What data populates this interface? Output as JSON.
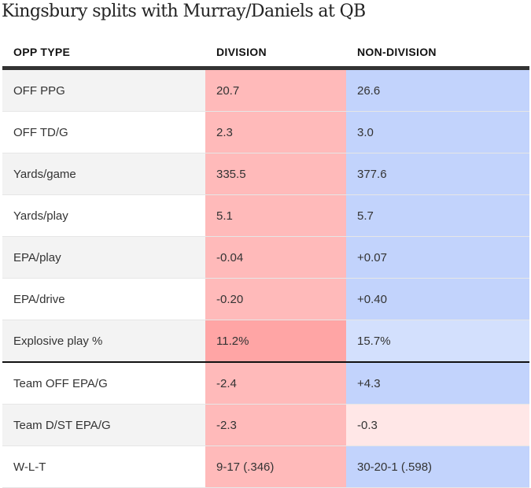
{
  "title": "Kingsbury splits with Murray/Daniels at QB",
  "columns": [
    "OPP TYPE",
    "DIVISION",
    "NON-DIVISION"
  ],
  "colors": {
    "div_base": "#ffbaba",
    "div_strong": "#ffa5a5",
    "nondiv_base": "#c2d3fc",
    "nondiv_light": "#d3e0fd",
    "nondiv_neg": "#ffe7e7"
  },
  "rows": [
    {
      "label": "OFF PPG",
      "division": "20.7",
      "non_division": "26.6",
      "div_color": "#ffbaba",
      "nondiv_color": "#c2d3fc"
    },
    {
      "label": "OFF TD/G",
      "division": "2.3",
      "non_division": "3.0",
      "div_color": "#ffbaba",
      "nondiv_color": "#c2d3fc"
    },
    {
      "label": "Yards/game",
      "division": "335.5",
      "non_division": "377.6",
      "div_color": "#ffbaba",
      "nondiv_color": "#c2d3fc"
    },
    {
      "label": "Yards/play",
      "division": "5.1",
      "non_division": "5.7",
      "div_color": "#ffbaba",
      "nondiv_color": "#c2d3fc"
    },
    {
      "label": "EPA/play",
      "division": "-0.04",
      "non_division": "+0.07",
      "div_color": "#ffbaba",
      "nondiv_color": "#c2d3fc"
    },
    {
      "label": "EPA/drive",
      "division": "-0.20",
      "non_division": "+0.40",
      "div_color": "#ffbaba",
      "nondiv_color": "#c2d3fc"
    },
    {
      "label": "Explosive play %",
      "division": "11.2%",
      "non_division": "15.7%",
      "div_color": "#ffa5a5",
      "nondiv_color": "#d3e0fd"
    },
    {
      "label": "Team OFF EPA/G",
      "division": "-2.4",
      "non_division": "+4.3",
      "div_color": "#ffbaba",
      "nondiv_color": "#c2d3fc"
    },
    {
      "label": "Team D/ST EPA/G",
      "division": "-2.3",
      "non_division": "-0.3",
      "div_color": "#ffbaba",
      "nondiv_color": "#ffe7e7"
    },
    {
      "label": "W-L-T",
      "division": "9-17 (.346)",
      "non_division": "30-20-1 (.598)",
      "div_color": "#ffbaba",
      "nondiv_color": "#c2d3fc"
    }
  ]
}
